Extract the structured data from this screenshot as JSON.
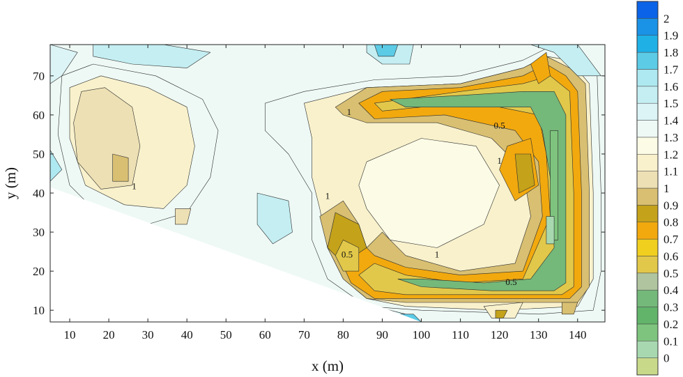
{
  "chart_data": {
    "type": "heatmap",
    "subtype": "filled-contour",
    "xlabel": "x (m)",
    "ylabel": "y (m)",
    "xlim": [
      5,
      147
    ],
    "ylim": [
      7,
      78
    ],
    "x_ticks": [
      10,
      20,
      30,
      40,
      50,
      60,
      70,
      80,
      90,
      100,
      110,
      120,
      130,
      140
    ],
    "y_ticks": [
      10,
      20,
      30,
      40,
      50,
      60,
      70
    ],
    "colorbar": {
      "levels": [
        0,
        0.1,
        0.2,
        0.3,
        0.4,
        0.5,
        0.6,
        0.7,
        0.8,
        0.9,
        1,
        1.1,
        1.2,
        1.3,
        1.4,
        1.5,
        1.6,
        1.7,
        1.8,
        1.9,
        2
      ],
      "labels": [
        "0",
        "0.1",
        "0.2",
        "0.3",
        "0.4",
        "0.5",
        "0.6",
        "0.7",
        "0.8",
        "0.9",
        "1",
        "1.1",
        "1.2",
        "1.3",
        "1.4",
        "1.5",
        "1.6",
        "1.7",
        "1.8",
        "1.9",
        "2"
      ],
      "colors": [
        "#c9d98a",
        "#a8d8b0",
        "#7ec47e",
        "#62b46a",
        "#74b87a",
        "#b0c4a0",
        "#e2c84a",
        "#f0cf1e",
        "#f2a90e",
        "#c4a21a",
        "#d8bf72",
        "#ede0b4",
        "#f8f1cc",
        "#fbfbe6",
        "#eef9f5",
        "#dcf4f6",
        "#c4eef2",
        "#aee8f0",
        "#5ccbe6",
        "#1fb0e6",
        "#1a92e6",
        "#0b63e8"
      ]
    },
    "contour_labels": [
      {
        "text": "1",
        "x": 26.5,
        "y": 41.5
      },
      {
        "text": "1",
        "x": 81.5,
        "y": 60.5
      },
      {
        "text": "0.5",
        "x": 120,
        "y": 57
      },
      {
        "text": "1",
        "x": 120,
        "y": 48
      },
      {
        "text": "1",
        "x": 76,
        "y": 39
      },
      {
        "text": "0.5",
        "x": 81,
        "y": 24
      },
      {
        "text": "1",
        "x": 104,
        "y": 24
      },
      {
        "text": "0.5",
        "x": 123,
        "y": 17
      }
    ],
    "regions": [
      {
        "level": 1.5,
        "points": [
          [
            16,
            78
          ],
          [
            34,
            78
          ],
          [
            46,
            76
          ],
          [
            40,
            72
          ],
          [
            26,
            73
          ],
          [
            16,
            75
          ]
        ]
      },
      {
        "level": 1.5,
        "points": [
          [
            86,
            78
          ],
          [
            98,
            78
          ],
          [
            97,
            73
          ],
          [
            90,
            73
          ],
          [
            86,
            76
          ]
        ]
      },
      {
        "level": 1.7,
        "points": [
          [
            88,
            78
          ],
          [
            94,
            78
          ],
          [
            93,
            75
          ],
          [
            89,
            75
          ]
        ]
      },
      {
        "level": 1.5,
        "points": [
          [
            58,
            40
          ],
          [
            66,
            38
          ],
          [
            67,
            30
          ],
          [
            62,
            27
          ],
          [
            58,
            32
          ]
        ]
      },
      {
        "level": 1.4,
        "points": [
          [
            5,
            78
          ],
          [
            12,
            76
          ],
          [
            8,
            70
          ],
          [
            5,
            68
          ]
        ]
      },
      {
        "level": 1.6,
        "points": [
          [
            5,
            51
          ],
          [
            8,
            46
          ],
          [
            5,
            43
          ]
        ]
      },
      {
        "level": 1.5,
        "points": [
          [
            20,
            7
          ],
          [
            100,
            7
          ],
          [
            96,
            9
          ],
          [
            88,
            11
          ],
          [
            74,
            13
          ],
          [
            50,
            22
          ],
          [
            22,
            33
          ],
          [
            5,
            41
          ],
          [
            5,
            12
          ],
          [
            14,
            9
          ]
        ]
      },
      {
        "level": 1.7,
        "points": [
          [
            88,
            7
          ],
          [
            100,
            7
          ],
          [
            98,
            9
          ],
          [
            88,
            9
          ]
        ]
      },
      {
        "level": 1.3,
        "points": [
          [
            8,
            70
          ],
          [
            16,
            73
          ],
          [
            32,
            70
          ],
          [
            44,
            64
          ],
          [
            48,
            56
          ],
          [
            46,
            44
          ],
          [
            40,
            35
          ],
          [
            30,
            32
          ],
          [
            18,
            34
          ],
          [
            10,
            42
          ],
          [
            7,
            55
          ]
        ]
      },
      {
        "level": 1.1,
        "points": [
          [
            10,
            67
          ],
          [
            18,
            70
          ],
          [
            30,
            67
          ],
          [
            40,
            62
          ],
          [
            42,
            52
          ],
          [
            40,
            42
          ],
          [
            34,
            36
          ],
          [
            24,
            37
          ],
          [
            14,
            42
          ],
          [
            10,
            54
          ]
        ]
      },
      {
        "level": 1.0,
        "points": [
          [
            13,
            66
          ],
          [
            19,
            67
          ],
          [
            26,
            62
          ],
          [
            28,
            52
          ],
          [
            26,
            42
          ],
          [
            18,
            41
          ],
          [
            12,
            48
          ],
          [
            11,
            58
          ]
        ]
      },
      {
        "level": 0.9,
        "points": [
          [
            21,
            50
          ],
          [
            25,
            49
          ],
          [
            25,
            43
          ],
          [
            21,
            43
          ]
        ]
      },
      {
        "level": 1.0,
        "points": [
          [
            37,
            36
          ],
          [
            41,
            36
          ],
          [
            40,
            32
          ],
          [
            37,
            32
          ]
        ]
      },
      {
        "level": 1.3,
        "points": [
          [
            60,
            63
          ],
          [
            70,
            66
          ],
          [
            88,
            69
          ],
          [
            110,
            70
          ],
          [
            126,
            74
          ],
          [
            132,
            77
          ],
          [
            140,
            76
          ],
          [
            145,
            70
          ],
          [
            146,
            40
          ],
          [
            146,
            20
          ],
          [
            144,
            10
          ],
          [
            130,
            9
          ],
          [
            100,
            10
          ],
          [
            86,
            11
          ],
          [
            76,
            18
          ],
          [
            72,
            28
          ],
          [
            72,
            40
          ],
          [
            66,
            50
          ],
          [
            60,
            56
          ]
        ]
      },
      {
        "level": 1.1,
        "points": [
          [
            70,
            63
          ],
          [
            86,
            67
          ],
          [
            110,
            68
          ],
          [
            126,
            72
          ],
          [
            132,
            75
          ],
          [
            138,
            74
          ],
          [
            143,
            68
          ],
          [
            144,
            40
          ],
          [
            144,
            18
          ],
          [
            140,
            11
          ],
          [
            120,
            10
          ],
          [
            96,
            11
          ],
          [
            86,
            13
          ],
          [
            80,
            18
          ],
          [
            76,
            26
          ],
          [
            74,
            36
          ],
          [
            72,
            44
          ],
          [
            72,
            54
          ]
        ]
      },
      {
        "level": 1.2,
        "points": [
          [
            86,
            48
          ],
          [
            100,
            54
          ],
          [
            114,
            52
          ],
          [
            120,
            42
          ],
          [
            116,
            32
          ],
          [
            104,
            26
          ],
          [
            92,
            28
          ],
          [
            86,
            36
          ],
          [
            84,
            42
          ]
        ]
      },
      {
        "level": 0.9,
        "points": [
          [
            78,
            62
          ],
          [
            86,
            67
          ],
          [
            110,
            68
          ],
          [
            126,
            72
          ],
          [
            132,
            75
          ],
          [
            138,
            72
          ],
          [
            142,
            68
          ],
          [
            143,
            40
          ],
          [
            143,
            16
          ],
          [
            140,
            12
          ],
          [
            120,
            12
          ],
          [
            96,
            12
          ],
          [
            86,
            13
          ],
          [
            80,
            18
          ],
          [
            76,
            26
          ],
          [
            74,
            34
          ],
          [
            80,
            38
          ],
          [
            84,
            32
          ],
          [
            86,
            26
          ],
          [
            90,
            30
          ],
          [
            96,
            24
          ],
          [
            110,
            20
          ],
          [
            124,
            22
          ],
          [
            128,
            34
          ],
          [
            126,
            46
          ],
          [
            118,
            54
          ],
          [
            104,
            58
          ],
          [
            86,
            58
          ],
          [
            80,
            60
          ]
        ]
      },
      {
        "level": 0.7,
        "points": [
          [
            84,
            63
          ],
          [
            90,
            66
          ],
          [
            110,
            67
          ],
          [
            126,
            70
          ],
          [
            132,
            73
          ],
          [
            137,
            70
          ],
          [
            140,
            66
          ],
          [
            141,
            40
          ],
          [
            141,
            16
          ],
          [
            138,
            13
          ],
          [
            120,
            13
          ],
          [
            96,
            13
          ],
          [
            88,
            13
          ],
          [
            82,
            17
          ],
          [
            78,
            26
          ],
          [
            80,
            34
          ],
          [
            84,
            28
          ],
          [
            88,
            24
          ],
          [
            96,
            21
          ],
          [
            110,
            19
          ],
          [
            126,
            20
          ],
          [
            131,
            34
          ],
          [
            130,
            48
          ],
          [
            124,
            56
          ],
          [
            106,
            60
          ],
          [
            88,
            59
          ]
        ]
      },
      {
        "level": 0.5,
        "points": [
          [
            88,
            63
          ],
          [
            110,
            66
          ],
          [
            126,
            68
          ],
          [
            133,
            70
          ],
          [
            138,
            66
          ],
          [
            139,
            40
          ],
          [
            139,
            16
          ],
          [
            136,
            14
          ],
          [
            120,
            14
          ],
          [
            96,
            14
          ],
          [
            88,
            15
          ],
          [
            84,
            19
          ],
          [
            88,
            22
          ],
          [
            96,
            19
          ],
          [
            110,
            17
          ],
          [
            126,
            18
          ],
          [
            133,
            34
          ],
          [
            132,
            50
          ],
          [
            130,
            60
          ],
          [
            120,
            62
          ],
          [
            100,
            62
          ],
          [
            90,
            61
          ]
        ]
      },
      {
        "level": 0.3,
        "points": [
          [
            92,
            64
          ],
          [
            110,
            65
          ],
          [
            126,
            66
          ],
          [
            134,
            66
          ],
          [
            137,
            60
          ],
          [
            137,
            30
          ],
          [
            137,
            17
          ],
          [
            134,
            15
          ],
          [
            118,
            15
          ],
          [
            100,
            16
          ],
          [
            94,
            18
          ],
          [
            100,
            18
          ],
          [
            116,
            17
          ],
          [
            128,
            18
          ],
          [
            134,
            26
          ],
          [
            133,
            44
          ],
          [
            131,
            56
          ],
          [
            128,
            62
          ],
          [
            112,
            62
          ],
          [
            96,
            62
          ]
        ]
      },
      {
        "level": 0.1,
        "points": [
          [
            133,
            56
          ],
          [
            135,
            56
          ],
          [
            135,
            28
          ],
          [
            133,
            28
          ]
        ]
      },
      {
        "level": 0.0,
        "points": [
          [
            132,
            34
          ],
          [
            134,
            34
          ],
          [
            134,
            27
          ],
          [
            132,
            27
          ]
        ]
      },
      {
        "level": 0.8,
        "points": [
          [
            78,
            35
          ],
          [
            84,
            32
          ],
          [
            86,
            26
          ],
          [
            80,
            22
          ],
          [
            76,
            26
          ]
        ]
      },
      {
        "level": 0.5,
        "points": [
          [
            80,
            28
          ],
          [
            84,
            26
          ],
          [
            84,
            20
          ],
          [
            80,
            20
          ],
          [
            78,
            24
          ]
        ]
      },
      {
        "level": 0.7,
        "points": [
          [
            122,
            52
          ],
          [
            128,
            54
          ],
          [
            130,
            42
          ],
          [
            124,
            38
          ],
          [
            120,
            46
          ]
        ]
      },
      {
        "level": 0.8,
        "points": [
          [
            124,
            50
          ],
          [
            128,
            50
          ],
          [
            129,
            42
          ],
          [
            125,
            40
          ]
        ]
      },
      {
        "level": 0.7,
        "points": [
          [
            128,
            73
          ],
          [
            132,
            76
          ],
          [
            133,
            70
          ],
          [
            130,
            68
          ]
        ]
      },
      {
        "level": 1.5,
        "points": [
          [
            128,
            78
          ],
          [
            140,
            78
          ],
          [
            146,
            70
          ],
          [
            140,
            70
          ],
          [
            134,
            76
          ]
        ]
      },
      {
        "level": 1.1,
        "points": [
          [
            116,
            11
          ],
          [
            126,
            12
          ],
          [
            124,
            8
          ],
          [
            118,
            8
          ]
        ]
      },
      {
        "level": 0.8,
        "points": [
          [
            119,
            10
          ],
          [
            122,
            10
          ],
          [
            121,
            8
          ],
          [
            119,
            8
          ]
        ]
      },
      {
        "level": 0.9,
        "points": [
          [
            136,
            12
          ],
          [
            140,
            12
          ],
          [
            139,
            9
          ],
          [
            136,
            9
          ]
        ]
      }
    ]
  }
}
